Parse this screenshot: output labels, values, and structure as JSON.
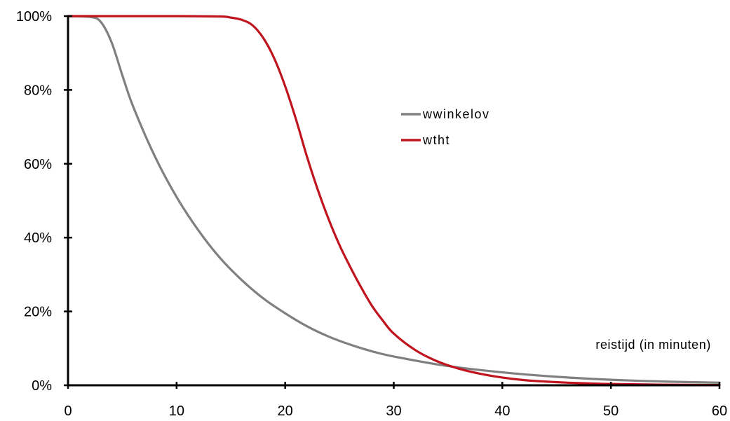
{
  "chart_data": {
    "type": "line",
    "title": "",
    "xlabel": "reistijd (in minuten)",
    "ylabel": "",
    "xlim": [
      0,
      60
    ],
    "ylim": [
      0,
      100
    ],
    "x_ticks": [
      0,
      10,
      20,
      30,
      40,
      50,
      60
    ],
    "y_ticks": [
      0,
      20,
      40,
      60,
      80,
      100
    ],
    "x_tick_labels": [
      "0",
      "10",
      "20",
      "30",
      "40",
      "50",
      "60"
    ],
    "y_tick_labels": [
      "0%",
      "20%",
      "40%",
      "60%",
      "80%",
      "100%"
    ],
    "grid": false,
    "legend_position": "center",
    "series": [
      {
        "name": "wwinkelov",
        "color": "#808080",
        "x": [
          0,
          2,
          3,
          4,
          5,
          6,
          8,
          10,
          12,
          14,
          16,
          18,
          20,
          22,
          24,
          26,
          28,
          30,
          35,
          40,
          45,
          50,
          55,
          60
        ],
        "values": [
          100,
          99.8,
          98.5,
          93,
          84,
          75.5,
          62,
          51,
          42,
          34.5,
          28.5,
          23.5,
          19.5,
          16,
          13.2,
          11,
          9.2,
          7.8,
          5.2,
          3.5,
          2.3,
          1.5,
          1.0,
          0.7
        ]
      },
      {
        "name": "wtht",
        "color": "#c0141e",
        "x": [
          0,
          5,
          10,
          14,
          15,
          16,
          17,
          18,
          19,
          20,
          21,
          22,
          23,
          24,
          25,
          26,
          27,
          28,
          29,
          30,
          32,
          34,
          36,
          38,
          40,
          42,
          44,
          46,
          48,
          50,
          55,
          60
        ],
        "values": [
          100,
          100,
          100,
          99.9,
          99.6,
          99,
          97.5,
          94,
          88.5,
          81,
          72,
          62,
          53,
          45,
          38,
          32,
          26.5,
          21.5,
          17.5,
          14,
          9.5,
          6.5,
          4.5,
          3.1,
          2.1,
          1.4,
          1.0,
          0.7,
          0.5,
          0.35,
          0.15,
          0.08
        ]
      }
    ]
  }
}
